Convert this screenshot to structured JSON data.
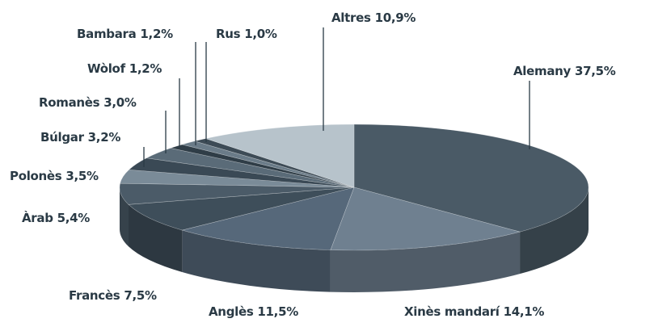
{
  "chart_data": {
    "type": "pie",
    "categories": [
      "Alemany",
      "Xinès mandarí",
      "Anglès",
      "Francès",
      "Àrab",
      "Polonès",
      "Búlgar",
      "Romanès",
      "Wòlof",
      "Bambara",
      "Rus",
      "Altres"
    ],
    "values": [
      37.5,
      14.1,
      11.5,
      7.5,
      5.4,
      3.5,
      3.2,
      3.0,
      1.2,
      1.2,
      1.0,
      10.9
    ],
    "value_labels": [
      "37,5%",
      "14,1%",
      "11,5%",
      "7,5%",
      "5,4%",
      "3,5%",
      "3,2%",
      "3,0%",
      "1,2%",
      "1,2%",
      "1,0%",
      "10,9%"
    ],
    "colors": [
      "#4a5a66",
      "#6f8090",
      "#56687a",
      "#3e4e5a",
      "#4b5b68",
      "#7a8b98",
      "#3a4955",
      "#5a6b78",
      "#2f3d47",
      "#6a7b88",
      "#3d4b56",
      "#b7c3cb"
    ]
  }
}
